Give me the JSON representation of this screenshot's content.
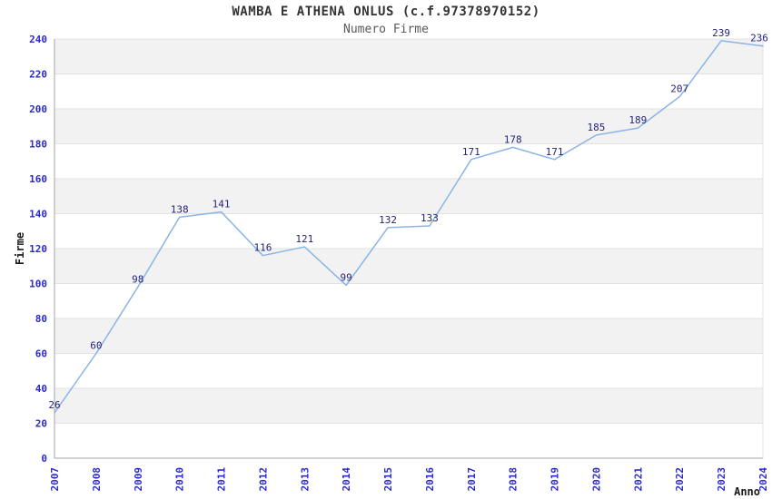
{
  "chart_data": {
    "type": "line",
    "title": "WAMBA E ATHENA ONLUS (c.f.97378970152)",
    "subtitle": "Numero Firme",
    "xlabel": "Anno",
    "ylabel": "Firme",
    "x": [
      "2007",
      "2008",
      "2009",
      "2010",
      "2011",
      "2012",
      "2013",
      "2014",
      "2015",
      "2016",
      "2017",
      "2018",
      "2019",
      "2020",
      "2021",
      "2022",
      "2023",
      "2024"
    ],
    "values": [
      26,
      60,
      98,
      138,
      141,
      116,
      121,
      99,
      132,
      133,
      171,
      178,
      171,
      185,
      189,
      207,
      239,
      236
    ],
    "ylim": [
      0,
      240
    ],
    "ytick_step": 20,
    "yticks": [
      0,
      20,
      40,
      60,
      80,
      100,
      120,
      140,
      160,
      180,
      200,
      220,
      240
    ],
    "grid": "horizontal-alternating-bands",
    "legend": "none",
    "data_labels": true,
    "colors": {
      "line": "#8ab4e8",
      "data_label": "#24247d",
      "tick_label": "#2b2bcc",
      "band": "#f2f2f2",
      "gridline": "#e2e2e2",
      "axis_line": "#a6a6a6",
      "title": "#333333",
      "subtitle": "#595959",
      "axis_title": "#1a1a1a",
      "background": "#ffffff"
    }
  }
}
